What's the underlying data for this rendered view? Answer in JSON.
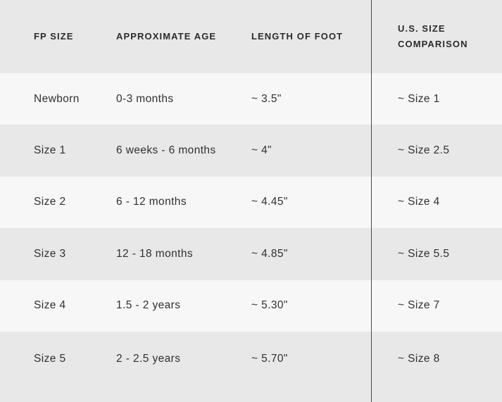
{
  "chart_data": {
    "type": "table",
    "columns": [
      "FP SIZE",
      "APPROXIMATE AGE",
      "LENGTH OF FOOT",
      "U.S. SIZE COMPARISON"
    ],
    "rows": [
      {
        "fp_size": "Newborn",
        "age": "0-3 months",
        "foot_length": "~ 3.5\"",
        "us_size": "~ Size 1"
      },
      {
        "fp_size": "Size 1",
        "age": "6 weeks - 6 months",
        "foot_length": "~ 4\"",
        "us_size": "~ Size 2.5"
      },
      {
        "fp_size": "Size 2",
        "age": "6 - 12 months",
        "foot_length": "~ 4.45\"",
        "us_size": "~ Size 4"
      },
      {
        "fp_size": "Size 3",
        "age": "12 - 18 months",
        "foot_length": "~ 4.85\"",
        "us_size": "~ Size 5.5"
      },
      {
        "fp_size": "Size 4",
        "age": "1.5 - 2 years",
        "foot_length": "~ 5.30\"",
        "us_size": "~ Size 7"
      },
      {
        "fp_size": "Size 5",
        "age": "2 - 2.5 years",
        "foot_length": "~ 5.70\"",
        "us_size": "~ Size 8"
      }
    ]
  },
  "colors": {
    "row_gray": "#e9e8e8",
    "row_light": "#f7f7f8",
    "divider": "#4a4a4a",
    "header_text": "#2b2b2b",
    "body_text": "#303030"
  }
}
